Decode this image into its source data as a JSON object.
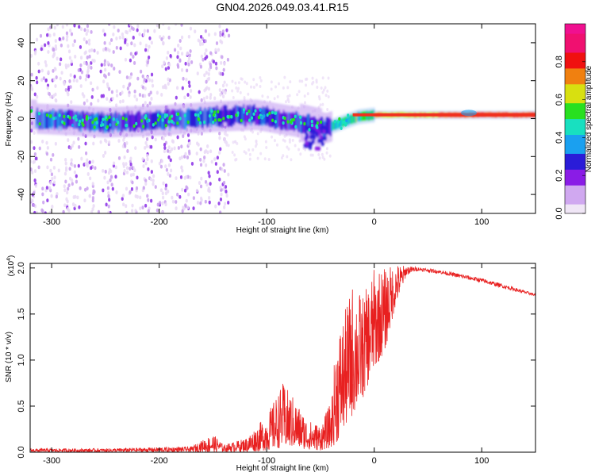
{
  "title": "GN04.2026.049.03.41.R15",
  "chart_data": [
    {
      "type": "heatmap",
      "name": "spectrogram",
      "xlabel": "Height of straight line (km)",
      "ylabel": "Frequency (Hz)",
      "xlim": [
        -320,
        150
      ],
      "ylim": [
        -50,
        50
      ],
      "xticks": [
        -300,
        -200,
        -100,
        0,
        100
      ],
      "yticks": [
        -40,
        -20,
        0,
        20,
        40
      ],
      "colorbar": {
        "label": "Normalized spectral amplitude",
        "range": [
          0,
          1
        ],
        "ticks": [
          "0.0",
          "0.2",
          "0.4",
          "0.6",
          "0.8"
        ],
        "tick_values": [
          0.0,
          0.2,
          0.4,
          0.6,
          0.8
        ],
        "colors": [
          "#f0e6f6",
          "#d0a8f0",
          "#8a1ce6",
          "#2a1cd8",
          "#1aa0f0",
          "#18e0c0",
          "#28e020",
          "#d8e010",
          "#f08010",
          "#f01010",
          "#f01070",
          "#f01090"
        ]
      },
      "ridge": [
        {
          "x": -315,
          "f": 0
        },
        {
          "x": -280,
          "f": -1
        },
        {
          "x": -250,
          "f": -2
        },
        {
          "x": -200,
          "f": -1
        },
        {
          "x": -150,
          "f": 1
        },
        {
          "x": -110,
          "f": 2
        },
        {
          "x": -90,
          "f": 0
        },
        {
          "x": -70,
          "f": -2
        },
        {
          "x": -55,
          "f": -4
        },
        {
          "x": -45,
          "f": -5
        },
        {
          "x": -30,
          "f": -2
        },
        {
          "x": -15,
          "f": 1
        },
        {
          "x": 0,
          "f": 2
        },
        {
          "x": 50,
          "f": 2
        },
        {
          "x": 90,
          "f": 2
        },
        {
          "x": 150,
          "f": 2
        }
      ]
    },
    {
      "type": "line",
      "name": "snr",
      "xlabel": "Height of straight line (km)",
      "ylabel": "SNR (10 * v/v)",
      "multiplier": "(x10",
      "multiplier_exp": "4",
      "xlim": [
        -320,
        150
      ],
      "ylim": [
        0,
        2.05
      ],
      "xticks": [
        -300,
        -200,
        -100,
        0,
        100
      ],
      "yticks": [
        "0.0",
        "0.5",
        "1.0",
        "1.5",
        "2.0"
      ],
      "ytick_values": [
        0.0,
        0.5,
        1.0,
        1.5,
        2.0
      ],
      "color": "#e82020",
      "envelope": [
        {
          "x": -320,
          "lo": 0.0,
          "hi": 0.04
        },
        {
          "x": -250,
          "lo": 0.0,
          "hi": 0.04
        },
        {
          "x": -170,
          "lo": 0.0,
          "hi": 0.06
        },
        {
          "x": -150,
          "lo": 0.0,
          "hi": 0.2
        },
        {
          "x": -140,
          "lo": 0.0,
          "hi": 0.08
        },
        {
          "x": -120,
          "lo": 0.0,
          "hi": 0.15
        },
        {
          "x": -100,
          "lo": 0.02,
          "hi": 0.4
        },
        {
          "x": -85,
          "lo": 0.05,
          "hi": 0.75
        },
        {
          "x": -75,
          "lo": 0.05,
          "hi": 0.6
        },
        {
          "x": -62,
          "lo": 0.03,
          "hi": 0.35
        },
        {
          "x": -50,
          "lo": 0.02,
          "hi": 0.3
        },
        {
          "x": -40,
          "lo": 0.05,
          "hi": 0.55
        },
        {
          "x": -35,
          "lo": 0.1,
          "hi": 1.3
        },
        {
          "x": -28,
          "lo": 0.25,
          "hi": 1.5
        },
        {
          "x": -20,
          "lo": 0.4,
          "hi": 1.85
        },
        {
          "x": -10,
          "lo": 0.6,
          "hi": 1.7
        },
        {
          "x": 0,
          "lo": 0.9,
          "hi": 2.0
        },
        {
          "x": 10,
          "lo": 1.1,
          "hi": 2.0
        },
        {
          "x": 20,
          "lo": 1.6,
          "hi": 2.05
        },
        {
          "x": 30,
          "lo": 1.92,
          "hi": 2.02
        },
        {
          "x": 40,
          "lo": 1.97,
          "hi": 2.01
        },
        {
          "x": 60,
          "lo": 1.94,
          "hi": 1.98
        },
        {
          "x": 100,
          "lo": 1.84,
          "hi": 1.89
        },
        {
          "x": 130,
          "lo": 1.75,
          "hi": 1.79
        },
        {
          "x": 150,
          "lo": 1.69,
          "hi": 1.72
        }
      ]
    }
  ]
}
